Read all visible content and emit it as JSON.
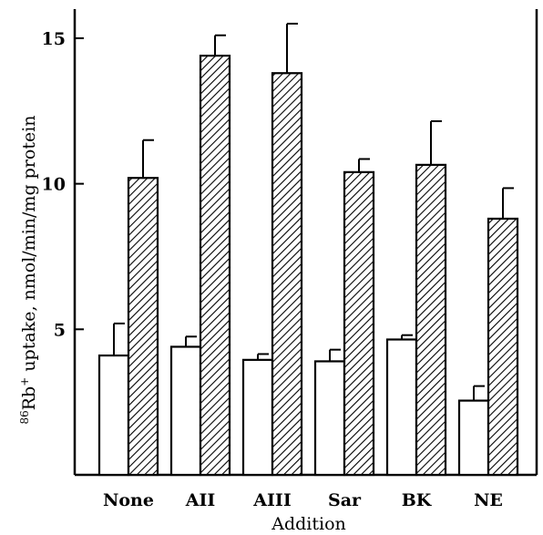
{
  "chart_data": {
    "type": "bar",
    "categories": [
      "None",
      "AII",
      "AIII",
      "Sar",
      "BK",
      "NE"
    ],
    "series": [
      {
        "fill": "open",
        "values": [
          4.1,
          4.4,
          3.95,
          3.9,
          4.65,
          2.55
        ],
        "errors": [
          1.1,
          0.35,
          0.2,
          0.4,
          0.15,
          0.5
        ]
      },
      {
        "fill": "hatched",
        "values": [
          10.2,
          14.4,
          13.8,
          10.4,
          10.65,
          8.8
        ],
        "errors": [
          1.3,
          0.7,
          1.7,
          0.45,
          1.5,
          1.05
        ]
      }
    ],
    "ylim": [
      0,
      16
    ],
    "yticks": [
      5,
      10,
      15
    ],
    "ylabel_sup": "86",
    "ylabel_main": "Rb",
    "ylabel_plus": "+",
    "ylabel_rest": " uptake, nmol/min/mg protein",
    "xlabel": "Addition",
    "colors": {
      "bar_stroke": "#000000",
      "bar_open_fill": "#ffffff",
      "hatch": "#000000"
    }
  }
}
